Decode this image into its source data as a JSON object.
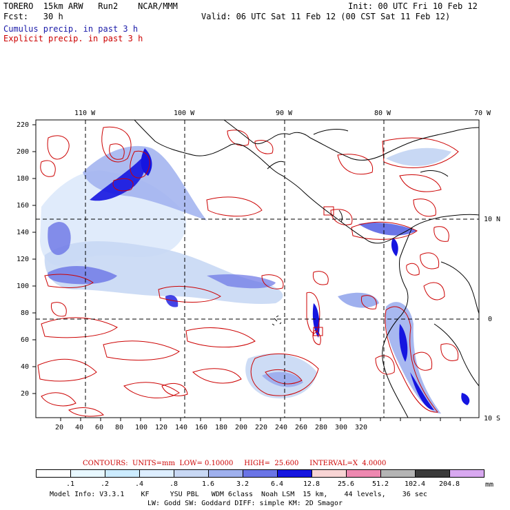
{
  "header": {
    "title_left": "TORERO  15km ARW   Run2    NCAR/MMM",
    "title_right": "Init: 00 UTC Fri 10 Feb 12",
    "fcst_left": "Fcst:   30 h",
    "fcst_right": "Valid: 06 UTC Sat 11 Feb 12 (00 CST Sat 11 Feb 12)",
    "legend_cumulus": "Cumulus precip. in past 3 h",
    "legend_explicit": "Explicit precip. in past 3 h",
    "colors": {
      "cumulus": "#1a1aa8",
      "explicit": "#cc0000"
    }
  },
  "map": {
    "top_ticks": [
      "110 W",
      "100 W",
      "90 W",
      "80 W",
      "70 W"
    ],
    "right_ticks": [
      "10 N",
      "0",
      "10 S"
    ],
    "left_ticks": [
      "220",
      "200",
      "180",
      "160",
      "140",
      "120",
      "100",
      "80",
      "60",
      "40",
      "20"
    ],
    "bottom_ticks": [
      "20",
      "40",
      "60",
      "80",
      "100",
      "120",
      "140",
      "160",
      "180",
      "200",
      "220",
      "240",
      "260",
      "280",
      "300",
      "320"
    ]
  },
  "contours_line": {
    "label": "CONTOURS:  UNITS=mm  LOW= 0.10000     HIGH=  25.600     INTERVAL=X  4.0000",
    "color": "#cc0000"
  },
  "colorbar": {
    "unit": "mm",
    "labels": [
      ".1",
      ".2",
      ".4",
      ".8",
      "1.6",
      "3.2",
      "6.4",
      "12.8",
      "25.6",
      "51.2",
      "102.4",
      "204.8"
    ],
    "colors": [
      "#ffffff",
      "#e8f8ff",
      "#ccecff",
      "#ddeeff",
      "#c8d8f4",
      "#9fb0ee",
      "#6a74e6",
      "#1515e0",
      "#f8d4d4",
      "#ee88b0",
      "#b4b4b4",
      "#3a3a3a",
      "#d8a8f0"
    ]
  },
  "footer": {
    "line1": "Model Info: V3.3.1    KF     YSU PBL   WDM 6class  Noah LSM  15 km,    44 levels,    36 sec",
    "line2": "LW: Godd SW: Goddard DIFF: simple KM: 2D Smagor"
  }
}
